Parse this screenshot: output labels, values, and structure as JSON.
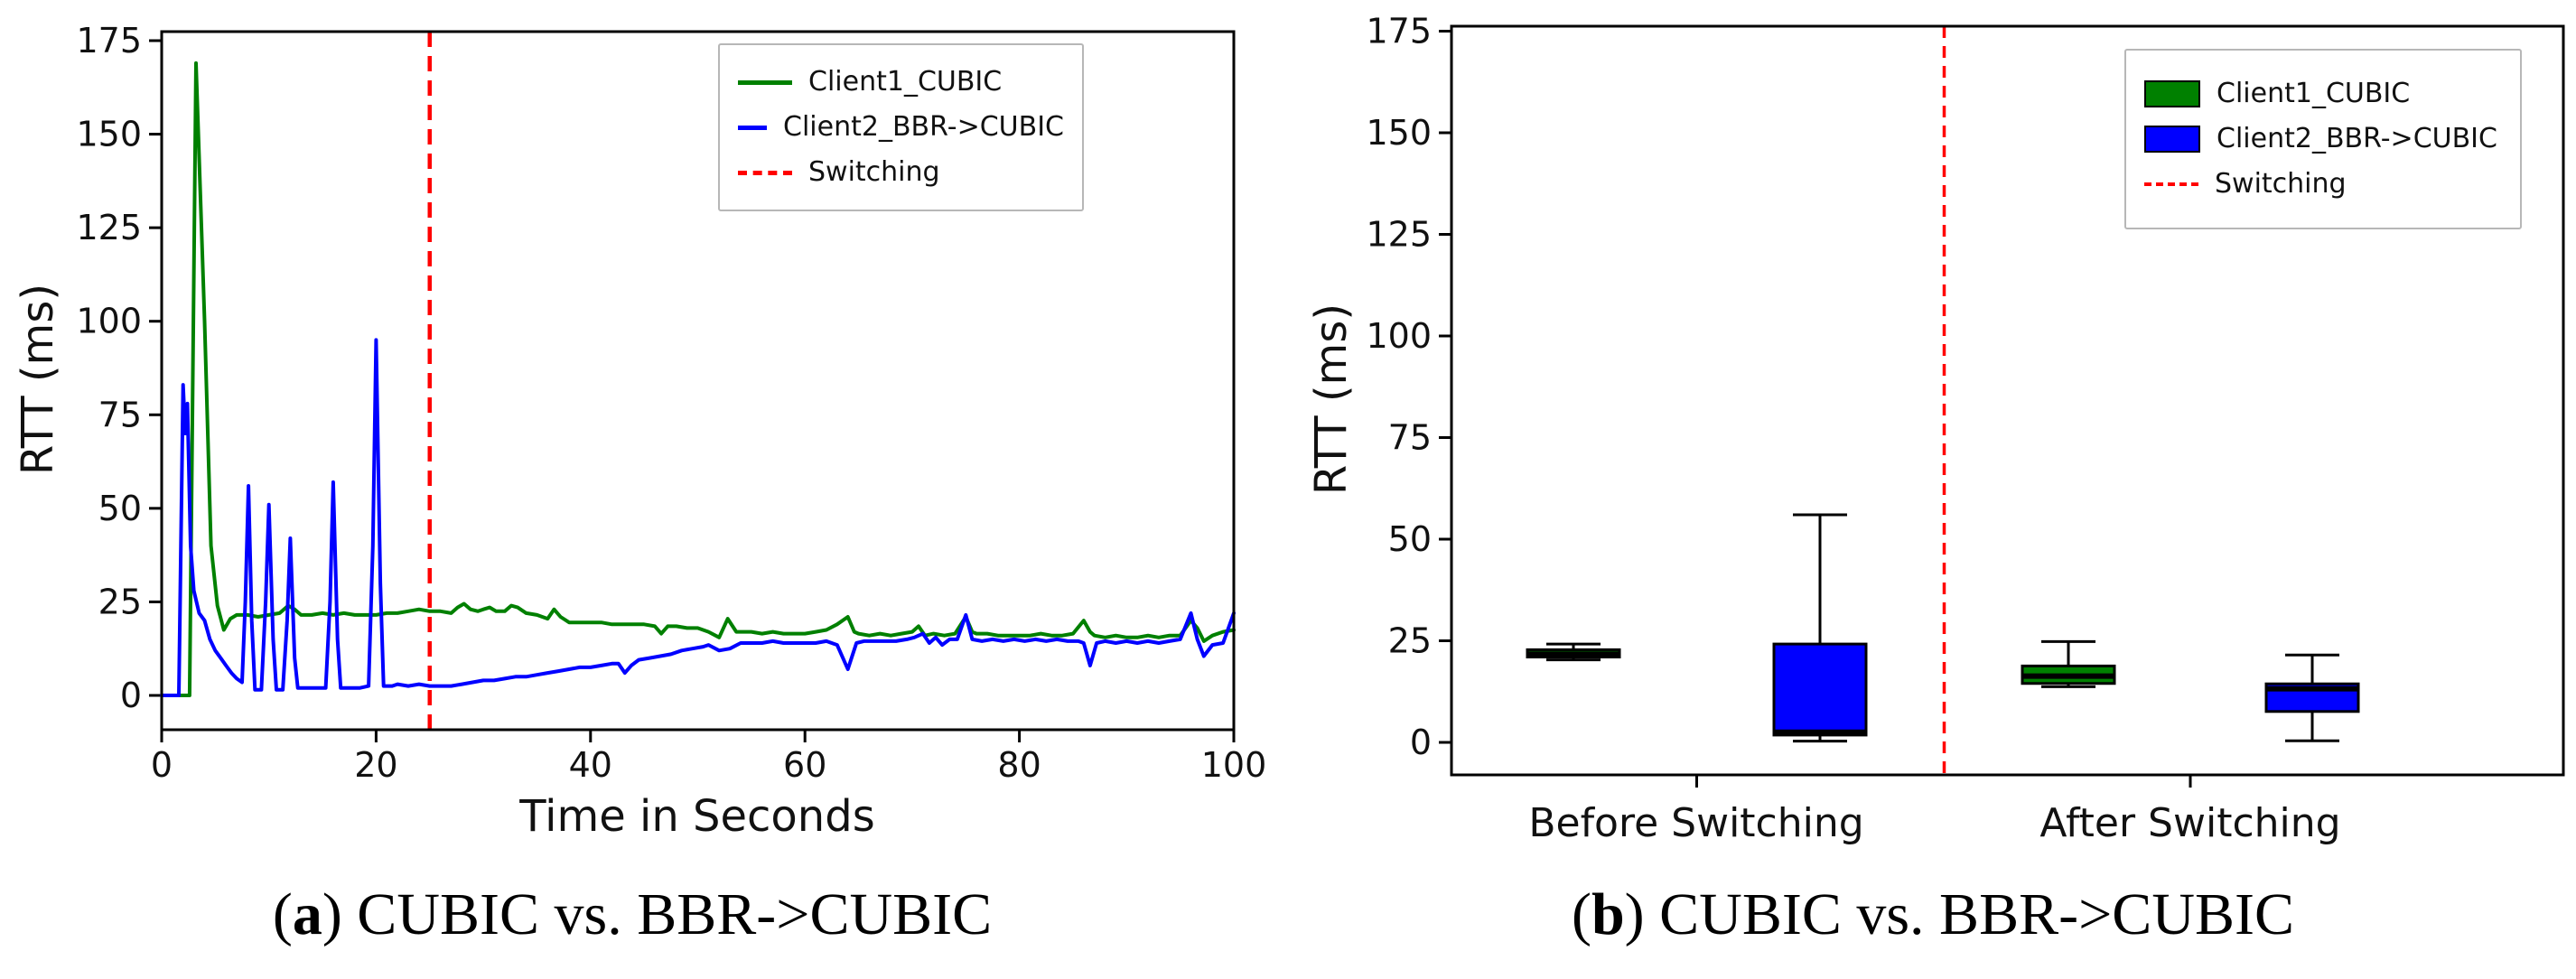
{
  "colors": {
    "client1": "#008000",
    "client2": "#0000ff",
    "switching": "#ff0000",
    "axis": "#000000"
  },
  "captions": {
    "a": {
      "open": "(",
      "letter": "a",
      "close": ")",
      "text": " CUBIC vs. BBR->CUBIC"
    },
    "b": {
      "open": "(",
      "letter": "b",
      "close": ")",
      "text": " CUBIC vs. BBR->CUBIC"
    }
  },
  "chart_data": [
    {
      "id": "rtt-timeseries",
      "type": "line",
      "xlabel": "Time in Seconds",
      "ylabel": "RTT (ms)",
      "xlim": [
        0,
        100
      ],
      "ylim": [
        -9,
        178
      ],
      "xticks": [
        0,
        20,
        40,
        60,
        80,
        100
      ],
      "yticks": [
        0,
        25,
        50,
        75,
        100,
        125,
        150,
        175
      ],
      "grid": false,
      "legend_position": "upper right",
      "legend": [
        {
          "label": "Client1_CUBIC",
          "color": "#008000",
          "style": "solid"
        },
        {
          "label": "Client2_BBR->CUBIC",
          "color": "#0000ff",
          "style": "solid"
        },
        {
          "label": "Switching",
          "color": "#ff0000",
          "style": "dashed"
        }
      ],
      "vline": {
        "x": 25,
        "color": "#ff0000",
        "style": "dashed"
      },
      "series": [
        {
          "name": "Client1_CUBIC",
          "color": "#008000",
          "points": [
            [
              0,
              0
            ],
            [
              1,
              0
            ],
            [
              2,
              0
            ],
            [
              2.6,
              0
            ],
            [
              3.2,
              169
            ],
            [
              4,
              100
            ],
            [
              4.6,
              40
            ],
            [
              5.2,
              24
            ],
            [
              5.8,
              17.5
            ],
            [
              6.4,
              20.5
            ],
            [
              7,
              21.5
            ],
            [
              8,
              21.5
            ],
            [
              9,
              21
            ],
            [
              10,
              21.5
            ],
            [
              11,
              22
            ],
            [
              11.8,
              24
            ],
            [
              12.4,
              23
            ],
            [
              13,
              21.5
            ],
            [
              14,
              21.5
            ],
            [
              15,
              22
            ],
            [
              16,
              21.5
            ],
            [
              17,
              22
            ],
            [
              18,
              21.5
            ],
            [
              19,
              21.5
            ],
            [
              20,
              21.5
            ],
            [
              21,
              22
            ],
            [
              22,
              22
            ],
            [
              23,
              22.5
            ],
            [
              24,
              23
            ],
            [
              25,
              22.5
            ],
            [
              26,
              22.5
            ],
            [
              27,
              22
            ],
            [
              27.6,
              23.5
            ],
            [
              28.2,
              24.5
            ],
            [
              28.8,
              23
            ],
            [
              29.5,
              22.5
            ],
            [
              30,
              23
            ],
            [
              30.6,
              23.5
            ],
            [
              31.2,
              22.5
            ],
            [
              32,
              22.5
            ],
            [
              32.6,
              24
            ],
            [
              33.2,
              23.5
            ],
            [
              34,
              22
            ],
            [
              35,
              21.5
            ],
            [
              36,
              20.5
            ],
            [
              36.6,
              23
            ],
            [
              37.2,
              21
            ],
            [
              38,
              19.5
            ],
            [
              39,
              19.5
            ],
            [
              40,
              19.5
            ],
            [
              41,
              19.5
            ],
            [
              42,
              19
            ],
            [
              43,
              19
            ],
            [
              44,
              19
            ],
            [
              45,
              19
            ],
            [
              46,
              18.5
            ],
            [
              46.6,
              16.5
            ],
            [
              47.2,
              18.5
            ],
            [
              48,
              18.5
            ],
            [
              49,
              18
            ],
            [
              50,
              18
            ],
            [
              51,
              17
            ],
            [
              52,
              15.5
            ],
            [
              52.8,
              20.5
            ],
            [
              53.6,
              17
            ],
            [
              55,
              17
            ],
            [
              56,
              16.5
            ],
            [
              57,
              17
            ],
            [
              58,
              16.5
            ],
            [
              59,
              16.5
            ],
            [
              60,
              16.5
            ],
            [
              61,
              17
            ],
            [
              62,
              17.5
            ],
            [
              63,
              19
            ],
            [
              64,
              21
            ],
            [
              64.6,
              17
            ],
            [
              65,
              16.5
            ],
            [
              66,
              16
            ],
            [
              67,
              16.5
            ],
            [
              68,
              16
            ],
            [
              69,
              16.5
            ],
            [
              70,
              17
            ],
            [
              70.6,
              18.5
            ],
            [
              71.2,
              16
            ],
            [
              72,
              16.5
            ],
            [
              73,
              16
            ],
            [
              74,
              16.5
            ],
            [
              75,
              21
            ],
            [
              75.6,
              17
            ],
            [
              76,
              16.5
            ],
            [
              77,
              16.5
            ],
            [
              78,
              16
            ],
            [
              79,
              16
            ],
            [
              80,
              16
            ],
            [
              81,
              16
            ],
            [
              82,
              16.5
            ],
            [
              83,
              16
            ],
            [
              84,
              16
            ],
            [
              85,
              16.5
            ],
            [
              86,
              20
            ],
            [
              86.6,
              17
            ],
            [
              87,
              16
            ],
            [
              88,
              15.5
            ],
            [
              89,
              16
            ],
            [
              90,
              15.5
            ],
            [
              91,
              15.5
            ],
            [
              92,
              16
            ],
            [
              93,
              15.5
            ],
            [
              94,
              16
            ],
            [
              95,
              16
            ],
            [
              96,
              20
            ],
            [
              96.6,
              18
            ],
            [
              97.2,
              14.5
            ],
            [
              98,
              16
            ],
            [
              99,
              17
            ],
            [
              100,
              17.5
            ]
          ]
        },
        {
          "name": "Client2_BBR->CUBIC",
          "color": "#0000ff",
          "points": [
            [
              0,
              0
            ],
            [
              1,
              0
            ],
            [
              1.6,
              0
            ],
            [
              2,
              83
            ],
            [
              2.2,
              70
            ],
            [
              2.4,
              78
            ],
            [
              2.7,
              40
            ],
            [
              3,
              28
            ],
            [
              3.5,
              22
            ],
            [
              4,
              20
            ],
            [
              4.5,
              15
            ],
            [
              5,
              12
            ],
            [
              5.5,
              10
            ],
            [
              6,
              8
            ],
            [
              6.5,
              6
            ],
            [
              7,
              4.5
            ],
            [
              7.5,
              3.5
            ],
            [
              7.8,
              25
            ],
            [
              8.1,
              56
            ],
            [
              8.4,
              20
            ],
            [
              8.7,
              1.5
            ],
            [
              9.3,
              1.5
            ],
            [
              9.7,
              25
            ],
            [
              10,
              51
            ],
            [
              10.4,
              15
            ],
            [
              10.7,
              1.5
            ],
            [
              11.3,
              1.5
            ],
            [
              11.7,
              20
            ],
            [
              12,
              42
            ],
            [
              12.4,
              10
            ],
            [
              12.7,
              2
            ],
            [
              13.5,
              2
            ],
            [
              14.5,
              2
            ],
            [
              15.3,
              2
            ],
            [
              15.7,
              25
            ],
            [
              16,
              57
            ],
            [
              16.4,
              15
            ],
            [
              16.7,
              2
            ],
            [
              17.5,
              2
            ],
            [
              18.5,
              2
            ],
            [
              19.3,
              2.5
            ],
            [
              19.7,
              40
            ],
            [
              20,
              95
            ],
            [
              20.4,
              30
            ],
            [
              20.7,
              2.5
            ],
            [
              21.5,
              2.5
            ],
            [
              22,
              3
            ],
            [
              23,
              2.5
            ],
            [
              24,
              3
            ],
            [
              25,
              2.5
            ],
            [
              26,
              2.5
            ],
            [
              27,
              2.5
            ],
            [
              28,
              3
            ],
            [
              29,
              3.5
            ],
            [
              30,
              4
            ],
            [
              31,
              4
            ],
            [
              32,
              4.5
            ],
            [
              33,
              5
            ],
            [
              34,
              5
            ],
            [
              35,
              5.5
            ],
            [
              36,
              6
            ],
            [
              37,
              6.5
            ],
            [
              38,
              7
            ],
            [
              39,
              7.5
            ],
            [
              40,
              7.5
            ],
            [
              41,
              8
            ],
            [
              42,
              8.5
            ],
            [
              42.6,
              8.5
            ],
            [
              43.2,
              6
            ],
            [
              43.8,
              8
            ],
            [
              44.5,
              9.5
            ],
            [
              45.5,
              10
            ],
            [
              46.5,
              10.5
            ],
            [
              47.5,
              11
            ],
            [
              48.5,
              12
            ],
            [
              49.5,
              12.5
            ],
            [
              50.5,
              13
            ],
            [
              51,
              13.5
            ],
            [
              52,
              12
            ],
            [
              53,
              12.5
            ],
            [
              54,
              14
            ],
            [
              55,
              14
            ],
            [
              56,
              14
            ],
            [
              57,
              14.5
            ],
            [
              58,
              14
            ],
            [
              59,
              14
            ],
            [
              60,
              14
            ],
            [
              61,
              14
            ],
            [
              62,
              14.5
            ],
            [
              63,
              13.5
            ],
            [
              64,
              7
            ],
            [
              64.8,
              14
            ],
            [
              65.5,
              14.5
            ],
            [
              66.5,
              14.5
            ],
            [
              67.5,
              14.5
            ],
            [
              68.5,
              14.5
            ],
            [
              69.5,
              15
            ],
            [
              70.2,
              15.5
            ],
            [
              71,
              16.5
            ],
            [
              71.6,
              14
            ],
            [
              72.2,
              15.5
            ],
            [
              72.8,
              13.5
            ],
            [
              73.5,
              15
            ],
            [
              74.2,
              15
            ],
            [
              75,
              21.5
            ],
            [
              75.6,
              15
            ],
            [
              76.5,
              14.5
            ],
            [
              77.5,
              15
            ],
            [
              78.5,
              14.5
            ],
            [
              79.5,
              15
            ],
            [
              80.5,
              14.5
            ],
            [
              81.5,
              15
            ],
            [
              82.5,
              14.5
            ],
            [
              83.5,
              15
            ],
            [
              84.5,
              14.5
            ],
            [
              85.5,
              14.5
            ],
            [
              86,
              14
            ],
            [
              86.6,
              8
            ],
            [
              87.2,
              14
            ],
            [
              88,
              14.5
            ],
            [
              89,
              14
            ],
            [
              90,
              14.5
            ],
            [
              91,
              14
            ],
            [
              92,
              14.5
            ],
            [
              93,
              14
            ],
            [
              94,
              14.5
            ],
            [
              95,
              15
            ],
            [
              96,
              22
            ],
            [
              96.6,
              15
            ],
            [
              97.2,
              10.5
            ],
            [
              98,
              13.5
            ],
            [
              99,
              14
            ],
            [
              100,
              22
            ]
          ]
        }
      ]
    },
    {
      "id": "rtt-boxplot",
      "type": "box",
      "ylabel": "RTT (ms)",
      "ylim": [
        -8,
        178
      ],
      "yticks": [
        0,
        25,
        50,
        75,
        100,
        125,
        150,
        175
      ],
      "grid": false,
      "groups": [
        "Before Switching",
        "After Switching"
      ],
      "legend_position": "upper right",
      "legend": [
        {
          "label": "Client1_CUBIC",
          "color": "#008000",
          "style": "patch"
        },
        {
          "label": "Client2_BBR->CUBIC",
          "color": "#0000ff",
          "style": "patch"
        },
        {
          "label": "Switching",
          "color": "#ff0000",
          "style": "dashed"
        }
      ],
      "vline_between_groups": true,
      "boxes": [
        {
          "group": "Before Switching",
          "name": "Client1_CUBIC",
          "color": "#008000",
          "whisker_low": 20.3,
          "q1": 21.0,
          "median": 21.7,
          "q3": 22.8,
          "whisker_high": 24.2
        },
        {
          "group": "Before Switching",
          "name": "Client2_BBR->CUBIC",
          "color": "#0000ff",
          "whisker_low": 0.3,
          "q1": 1.8,
          "median": 2.5,
          "q3": 24.2,
          "whisker_high": 56.0
        },
        {
          "group": "After Switching",
          "name": "Client1_CUBIC",
          "color": "#008000",
          "whisker_low": 13.7,
          "q1": 14.5,
          "median": 16.3,
          "q3": 18.8,
          "whisker_high": 24.8
        },
        {
          "group": "After Switching",
          "name": "Client2_BBR->CUBIC",
          "color": "#0000ff",
          "whisker_low": 0.4,
          "q1": 7.6,
          "median": 13.2,
          "q3": 14.4,
          "whisker_high": 21.5
        }
      ]
    }
  ]
}
